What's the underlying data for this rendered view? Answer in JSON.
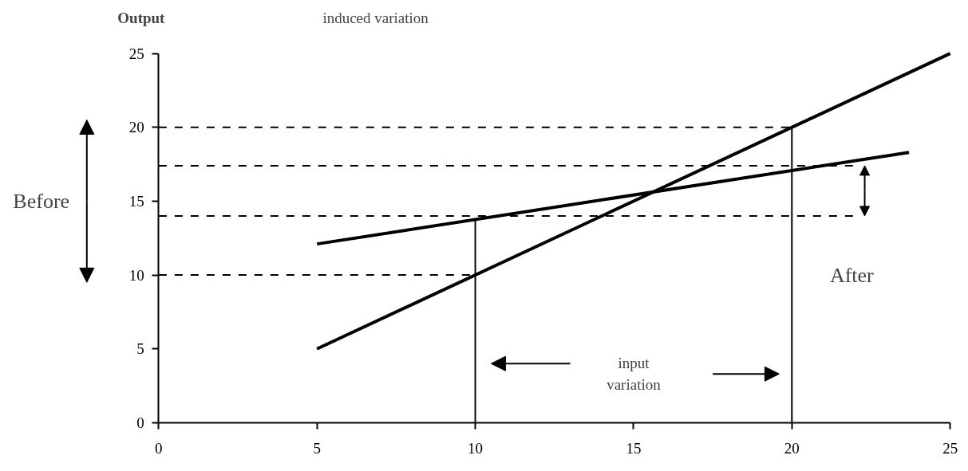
{
  "chart_data": {
    "type": "line",
    "ylabel": "Output",
    "annotations": [
      "induced variation",
      "Before",
      "After",
      "input variation"
    ],
    "xlim": [
      0,
      25
    ],
    "ylim": [
      0,
      25
    ],
    "xticks": [
      0,
      5,
      10,
      15,
      20,
      25
    ],
    "yticks": [
      0,
      5,
      10,
      15,
      20,
      25
    ],
    "grid": false,
    "series": [
      {
        "color": "#000000",
        "x": [
          5,
          25
        ],
        "values": [
          5,
          25
        ],
        "line_style": "solid"
      },
      {
        "color": "#000000",
        "x": [
          5,
          23.7
        ],
        "values": [
          12.1,
          18.3
        ],
        "line_style": "solid"
      },
      {
        "color": "#000000",
        "x": [
          0,
          20
        ],
        "values": [
          20,
          20
        ],
        "line_style": "dashed"
      },
      {
        "color": "#000000",
        "x": [
          0,
          22
        ],
        "values": [
          17.4,
          17.4
        ],
        "line_style": "dashed"
      },
      {
        "color": "#000000",
        "x": [
          0,
          22
        ],
        "values": [
          14,
          14
        ],
        "line_style": "dashed"
      },
      {
        "color": "#000000",
        "x": [
          0,
          10
        ],
        "values": [
          10,
          10
        ],
        "line_style": "dashed"
      },
      {
        "color": "#000000",
        "x": [
          10,
          10
        ],
        "values": [
          0,
          13.8
        ],
        "line_style": "solid"
      },
      {
        "color": "#000000",
        "x": [
          20,
          20
        ],
        "values": [
          0,
          20
        ],
        "line_style": "solid"
      }
    ]
  }
}
